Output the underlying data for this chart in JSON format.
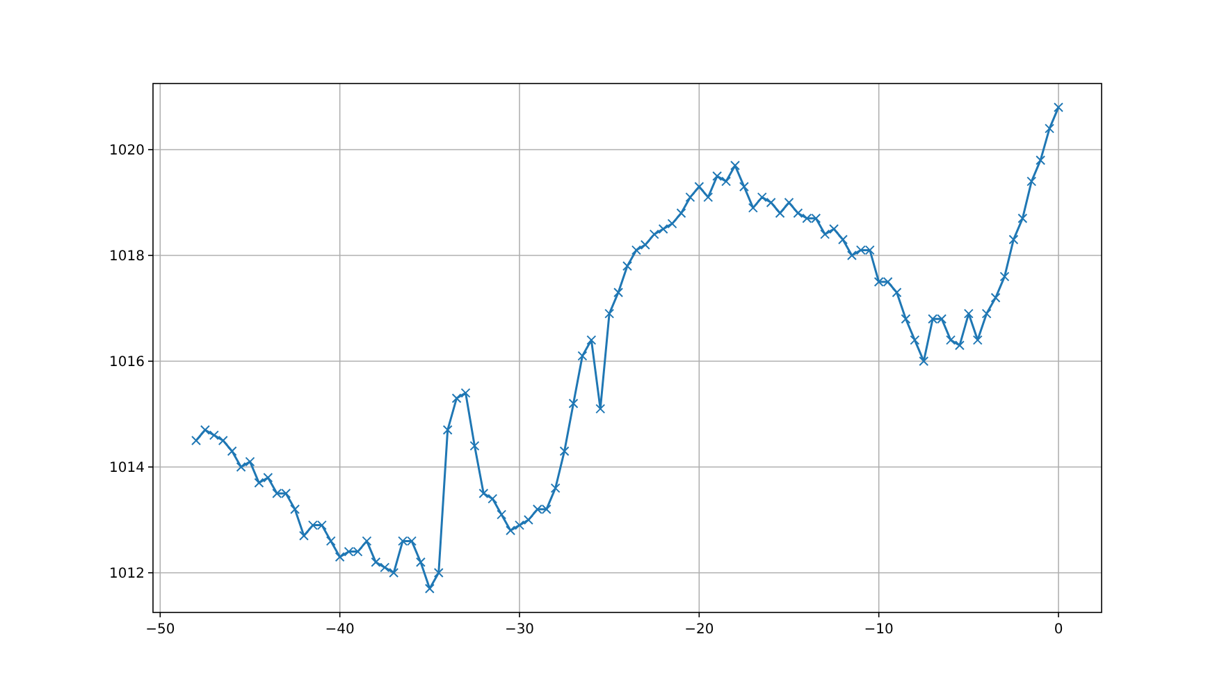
{
  "chart_data": {
    "type": "line",
    "x": [
      -48,
      -47.5,
      -47,
      -46.5,
      -46,
      -45.5,
      -45,
      -44.5,
      -44,
      -43.5,
      -43,
      -42.5,
      -42,
      -41.5,
      -41,
      -40.5,
      -40,
      -39.5,
      -39,
      -38.5,
      -38,
      -37.5,
      -37,
      -36.5,
      -36,
      -35.5,
      -35,
      -34.5,
      -34,
      -33.5,
      -33,
      -32.5,
      -32,
      -31.5,
      -31,
      -30.5,
      -30,
      -29.5,
      -29,
      -28.5,
      -28,
      -27.5,
      -27,
      -26.5,
      -26,
      -25.5,
      -25,
      -24.5,
      -24,
      -23.5,
      -23,
      -22.5,
      -22,
      -21.5,
      -21,
      -20.5,
      -20,
      -19.5,
      -19,
      -18.5,
      -18,
      -17.5,
      -17,
      -16.5,
      -16,
      -15.5,
      -15,
      -14.5,
      -14,
      -13.5,
      -13,
      -12.5,
      -12,
      -11.5,
      -11,
      -10.5,
      -10,
      -9.5,
      -9,
      -8.5,
      -8,
      -7.5,
      -7,
      -6.5,
      -6,
      -5.5,
      -5,
      -4.5,
      -4,
      -3.5,
      -3,
      -2.5,
      -2,
      -1.5,
      -1,
      -0.5,
      0
    ],
    "series": [
      {
        "color": "#1f77b4",
        "values": [
          1014.5,
          1014.7,
          1014.6,
          1014.5,
          1014.3,
          1014.0,
          1014.1,
          1013.7,
          1013.8,
          1013.5,
          1013.5,
          1013.2,
          1012.7,
          1012.9,
          1012.9,
          1012.6,
          1012.3,
          1012.4,
          1012.4,
          1012.6,
          1012.2,
          1012.1,
          1012.0,
          1012.6,
          1012.6,
          1012.2,
          1011.7,
          1012.0,
          1014.7,
          1015.3,
          1015.4,
          1014.4,
          1013.5,
          1013.4,
          1013.1,
          1012.8,
          1012.9,
          1013.0,
          1013.2,
          1013.2,
          1013.6,
          1014.3,
          1015.2,
          1016.1,
          1016.4,
          1015.1,
          1016.9,
          1017.3,
          1017.8,
          1018.1,
          1018.2,
          1018.4,
          1018.5,
          1018.6,
          1018.8,
          1019.1,
          1019.3,
          1019.1,
          1019.5,
          1019.4,
          1019.7,
          1019.3,
          1018.9,
          1019.1,
          1019.0,
          1018.8,
          1019.0,
          1018.8,
          1018.7,
          1018.7,
          1018.4,
          1018.5,
          1018.3,
          1018.0,
          1018.1,
          1018.1,
          1017.5,
          1017.5,
          1017.3,
          1016.8,
          1016.4,
          1016.0,
          1016.8,
          1016.8,
          1016.4,
          1016.3,
          1016.9,
          1016.4,
          1016.9,
          1017.2,
          1017.6,
          1018.3,
          1018.7,
          1019.4,
          1019.8,
          1020.4,
          1020.8
        ]
      }
    ],
    "xlim": [
      -50.4,
      2.4
    ],
    "ylim": [
      1011.25,
      1021.25
    ],
    "xticks": [
      {
        "value": -50,
        "label": "−50"
      },
      {
        "value": -40,
        "label": "−40"
      },
      {
        "value": -30,
        "label": "−30"
      },
      {
        "value": -20,
        "label": "−20"
      },
      {
        "value": -10,
        "label": "−10"
      },
      0
    ],
    "yticks": [
      1012,
      1014,
      1016,
      1018,
      1020
    ],
    "grid": true,
    "marker": "cross",
    "line_style": "solid"
  }
}
